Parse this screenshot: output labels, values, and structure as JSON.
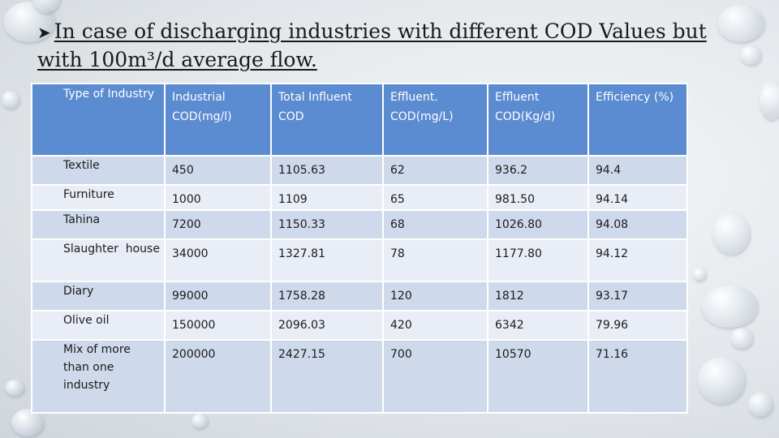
{
  "slide": {
    "bullet_icon": "arrow-bullet-icon",
    "title": "In case of discharging industries with different COD Values but with 100m³/d average flow."
  },
  "table": {
    "headers": [
      "Type of Industry",
      "Industrial COD(mg/l)",
      "Total Influent COD",
      "Effluent. COD(mg/L)",
      "Effluent COD(Kg/d)",
      "Efficiency (%)"
    ],
    "rows": [
      [
        "Textile",
        "450",
        "1105.63",
        "62",
        "936.2",
        "94.4"
      ],
      [
        "Furniture",
        "1000",
        "1109",
        "65",
        "981.50",
        "94.14"
      ],
      [
        "Tahina",
        "7200",
        "1150.33",
        "68",
        "1026.80",
        "94.08"
      ],
      [
        "Slaughter  house",
        "34000",
        "1327.81",
        "78",
        "1177.80",
        "94.12"
      ],
      [
        "Diary",
        "99000",
        "1758.28",
        "120",
        "1812",
        "93.17"
      ],
      [
        "Olive oil",
        "150000",
        "2096.03",
        "420",
        "6342",
        "79.96"
      ],
      [
        "Mix of more than one industry",
        "200000",
        "2427.15",
        "700",
        "10570",
        "71.16"
      ]
    ]
  },
  "colors": {
    "header_bg": "#5b8bd0",
    "row_dark": "#cfd9ec",
    "row_light": "#e8edf6"
  }
}
